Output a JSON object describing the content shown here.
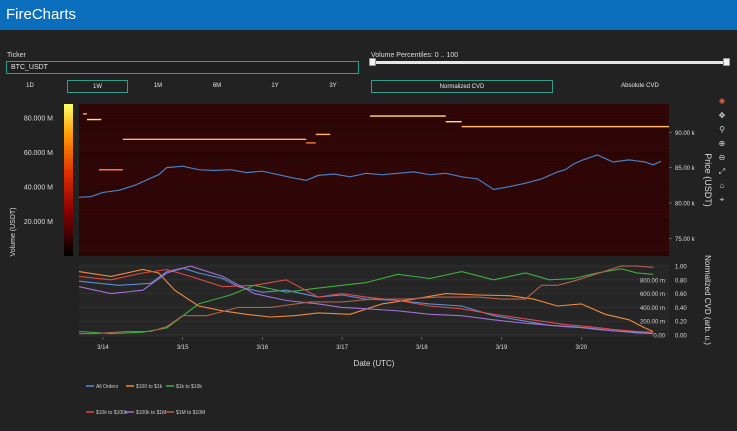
{
  "app": {
    "title": "FireCharts"
  },
  "ticker": {
    "label": "Ticker",
    "value": "BTC_USDT"
  },
  "volume_percentiles": {
    "label": "Volume Percentiles: 0 .. 100",
    "low": 0,
    "high": 100
  },
  "timeframes": [
    {
      "label": "1D",
      "active": false
    },
    {
      "label": "1W",
      "active": true
    },
    {
      "label": "1M",
      "active": false
    },
    {
      "label": "6M",
      "active": false
    },
    {
      "label": "1Y",
      "active": false
    },
    {
      "label": "3Y",
      "active": false
    }
  ],
  "cvd_modes": [
    {
      "label": "Normalized CVD",
      "active": true
    },
    {
      "label": "Absolute CVD",
      "active": false
    }
  ],
  "modebar": [
    "plotly-logo-icon",
    "pan-icon",
    "zoom-icon",
    "zoom-in-icon",
    "zoom-out-icon",
    "autoscale-icon",
    "reset-axes-icon",
    "spike-lines-icon"
  ],
  "colors": {
    "header": "#0a6ebd",
    "accent": "#2e9e8f",
    "background": "#222222",
    "heatmap_base": "#2a0606",
    "price_line": "#4a7fc4"
  },
  "chart_data": [
    {
      "type": "heatmap",
      "ylabel": "Price (USDT)",
      "xlabel": "",
      "colorbar": {
        "title": "Volume (USDT)",
        "ticks": [
          "20.000 M",
          "40.000 M",
          "60.000 M",
          "80.000 M"
        ],
        "tick_values": [
          20,
          40,
          60,
          80
        ],
        "range": [
          0,
          88
        ]
      },
      "yticks": [
        "75.00 k",
        "80.00 k",
        "85.00 k",
        "90.00 k"
      ],
      "ytick_values": [
        75,
        80,
        85,
        90
      ],
      "ylim": [
        72.5,
        94
      ],
      "xlim": [
        0,
        7.4
      ],
      "price_series": {
        "name": "Price",
        "x": [
          0,
          0.15,
          0.3,
          0.5,
          0.7,
          0.9,
          1.0,
          1.1,
          1.3,
          1.5,
          1.7,
          1.9,
          2.1,
          2.3,
          2.5,
          2.7,
          2.85,
          3.0,
          3.2,
          3.4,
          3.6,
          3.8,
          4.0,
          4.2,
          4.4,
          4.6,
          4.8,
          5.0,
          5.2,
          5.4,
          5.6,
          5.8,
          6.0,
          6.1,
          6.2,
          6.3,
          6.5,
          6.7,
          6.9,
          7.1,
          7.2,
          7.3
        ],
        "y": [
          80.8,
          80.9,
          81.5,
          81.8,
          82.5,
          83.5,
          84.0,
          85.0,
          85.2,
          84.7,
          84.6,
          84.7,
          84.3,
          84.5,
          84.0,
          83.5,
          83.2,
          83.9,
          84.1,
          83.7,
          84.2,
          84.0,
          84.2,
          84.4,
          84.0,
          84.2,
          83.7,
          83.4,
          81.9,
          82.3,
          82.8,
          83.4,
          84.4,
          84.7,
          85.5,
          86.0,
          86.8,
          85.8,
          86.1,
          85.8,
          85.4,
          85.9
        ]
      },
      "resting_orders": [
        {
          "price": 91.8,
          "x0": 0.1,
          "x1": 0.28,
          "volume": 80
        },
        {
          "price": 92.6,
          "x0": 0.05,
          "x1": 0.1,
          "volume": 70
        },
        {
          "price": 89.0,
          "x0": 0.55,
          "x1": 2.85,
          "volume": 55
        },
        {
          "price": 88.5,
          "x0": 2.85,
          "x1": 2.97,
          "volume": 45
        },
        {
          "price": 89.7,
          "x0": 2.97,
          "x1": 3.15,
          "volume": 60
        },
        {
          "price": 84.7,
          "x0": 0.25,
          "x1": 0.55,
          "volume": 50
        },
        {
          "price": 92.3,
          "x0": 3.65,
          "x1": 4.6,
          "volume": 75
        },
        {
          "price": 91.5,
          "x0": 4.6,
          "x1": 4.8,
          "volume": 85
        },
        {
          "price": 90.8,
          "x0": 4.8,
          "x1": 7.4,
          "volume": 55
        }
      ]
    },
    {
      "type": "line",
      "xlabel": "Date (UTC)",
      "ylabel": "Normalized CVD (arb. u.)",
      "categories": [
        "3/14",
        "3/15",
        "3/16",
        "3/17",
        "3/18",
        "3/19",
        "3/20"
      ],
      "category_x": [
        0.3,
        1.3,
        2.3,
        3.3,
        4.3,
        5.3,
        6.3
      ],
      "xlim": [
        0,
        7.4
      ],
      "ylim": [
        -0.03,
        1.03
      ],
      "yticks_right": [
        "0.00",
        "0.20",
        "0.40",
        "0.60",
        "0.80",
        "1.00"
      ],
      "ytick_values": [
        0,
        0.2,
        0.4,
        0.6,
        0.8,
        1.0
      ],
      "yticks_left": [
        "0.00",
        "200.00 m",
        "400.00 m",
        "600.00 m",
        "800.00 m"
      ],
      "series": [
        {
          "name": "All Orders",
          "color": "#5b8dd6",
          "x": [
            0,
            0.5,
            0.9,
            1.1,
            1.3,
            1.5,
            1.8,
            2.0,
            2.3,
            2.6,
            3.0,
            3.3,
            3.6,
            4.0,
            4.4,
            4.8,
            5.2,
            5.6,
            5.9,
            6.2,
            6.5,
            6.8,
            7.0,
            7.2
          ],
          "y": [
            0.78,
            0.72,
            0.75,
            0.92,
            0.97,
            0.9,
            0.82,
            0.7,
            0.62,
            0.65,
            0.55,
            0.58,
            0.52,
            0.5,
            0.45,
            0.42,
            0.28,
            0.2,
            0.14,
            0.12,
            0.08,
            0.05,
            0.03,
            0.02
          ]
        },
        {
          "name": "$100 to $1k",
          "color": "#f08a3c",
          "x": [
            0,
            0.4,
            0.8,
            1.0,
            1.2,
            1.5,
            1.8,
            2.1,
            2.4,
            2.7,
            3.0,
            3.4,
            3.8,
            4.2,
            4.6,
            5.0,
            5.4,
            5.7,
            6.0,
            6.3,
            6.6,
            6.9,
            7.1,
            7.2
          ],
          "y": [
            0.92,
            0.85,
            0.95,
            0.9,
            0.65,
            0.42,
            0.35,
            0.3,
            0.26,
            0.28,
            0.32,
            0.3,
            0.45,
            0.52,
            0.6,
            0.58,
            0.57,
            0.52,
            0.42,
            0.45,
            0.3,
            0.22,
            0.1,
            0.05
          ]
        },
        {
          "name": "$1k to $10k",
          "color": "#3fae3f",
          "x": [
            0,
            0.4,
            0.8,
            1.1,
            1.5,
            1.9,
            2.2,
            2.6,
            3.0,
            3.3,
            3.6,
            4.0,
            4.4,
            4.8,
            5.2,
            5.6,
            5.9,
            6.2,
            6.5,
            6.8,
            7.0,
            7.2
          ],
          "y": [
            0.05,
            0.02,
            0.04,
            0.1,
            0.45,
            0.58,
            0.72,
            0.62,
            0.68,
            0.72,
            0.76,
            0.88,
            0.82,
            0.92,
            0.8,
            0.9,
            0.8,
            0.82,
            0.9,
            0.96,
            0.9,
            0.88
          ]
        },
        {
          "name": "$10k to $100k",
          "color": "#e04848",
          "x": [
            0,
            0.4,
            0.8,
            1.1,
            1.4,
            1.8,
            2.2,
            2.6,
            3.0,
            3.3,
            3.6,
            4.0,
            4.4,
            4.8,
            5.2,
            5.5,
            5.8,
            6.1,
            6.4,
            6.7,
            7.0,
            7.2
          ],
          "y": [
            0.85,
            0.8,
            0.9,
            0.95,
            0.85,
            0.7,
            0.72,
            0.8,
            0.55,
            0.6,
            0.55,
            0.5,
            0.42,
            0.38,
            0.3,
            0.25,
            0.2,
            0.15,
            0.12,
            0.08,
            0.05,
            0.04
          ]
        },
        {
          "name": "$100k to $1M",
          "color": "#a070d0",
          "x": [
            0,
            0.4,
            0.8,
            1.1,
            1.4,
            1.8,
            2.2,
            2.6,
            3.0,
            3.3,
            3.6,
            4.0,
            4.4,
            4.8,
            5.2,
            5.5,
            5.8,
            6.1,
            6.4,
            6.7,
            7.0,
            7.2
          ],
          "y": [
            0.7,
            0.6,
            0.65,
            0.9,
            1.0,
            0.85,
            0.6,
            0.5,
            0.45,
            0.4,
            0.38,
            0.35,
            0.3,
            0.28,
            0.22,
            0.18,
            0.15,
            0.12,
            0.1,
            0.06,
            0.04,
            0.02
          ]
        },
        {
          "name": "$1M to $10M",
          "color": "#b06050",
          "x": [
            0,
            0.2,
            0.6,
            0.9,
            1.1,
            1.3,
            1.6,
            2.0,
            2.4,
            2.9,
            3.3,
            3.7,
            4.1,
            4.5,
            5.0,
            5.3,
            5.6,
            5.8,
            6.0,
            6.2,
            6.8,
            7.0,
            7.2
          ],
          "y": [
            0.02,
            0.02,
            0.05,
            0.05,
            0.12,
            0.28,
            0.28,
            0.4,
            0.4,
            0.48,
            0.48,
            0.52,
            0.52,
            0.55,
            0.55,
            0.52,
            0.52,
            0.72,
            0.72,
            0.78,
            1.0,
            1.0,
            0.98
          ]
        }
      ]
    }
  ],
  "legend": [
    {
      "name": "All Orders",
      "color": "#5b8dd6"
    },
    {
      "name": "$100 to $1k",
      "color": "#f08a3c"
    },
    {
      "name": "$1k to $10k",
      "color": "#3fae3f"
    },
    {
      "name": "$10k to $100k",
      "color": "#e04848"
    },
    {
      "name": "$100k to $1M",
      "color": "#a070d0"
    },
    {
      "name": "$1M to $10M",
      "color": "#b06050"
    }
  ]
}
